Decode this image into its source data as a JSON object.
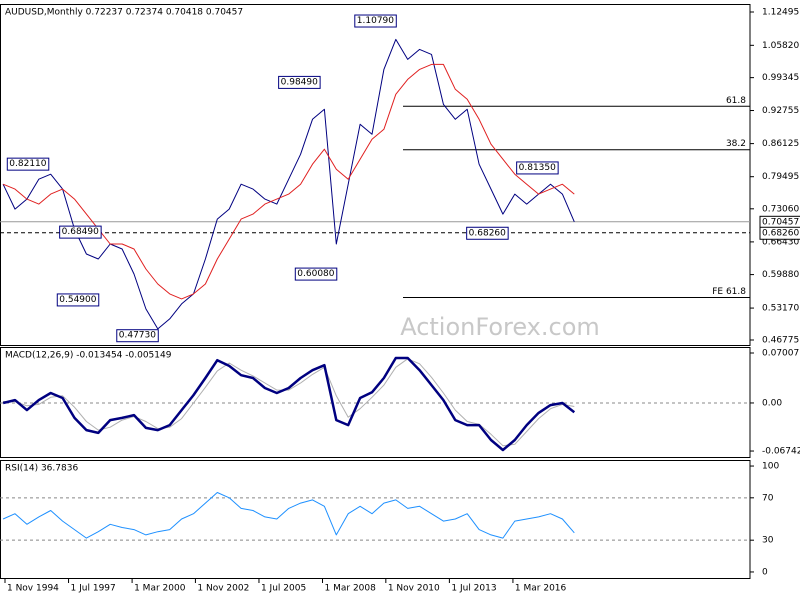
{
  "chart_data": [
    {
      "type": "line",
      "title": "AUDUSD,Monthly  0.72237 0.72374 0.70418 0.70457",
      "x": [
        1994.75,
        1995.25,
        1995.75,
        1996.25,
        1996.75,
        1997.25,
        1997.75,
        1998.25,
        1998.75,
        1999.25,
        1999.75,
        2000.25,
        2000.75,
        2001.25,
        2001.75,
        2002.25,
        2002.75,
        2003.25,
        2003.75,
        2004.25,
        2004.75,
        2005.25,
        2005.75,
        2006.25,
        2006.75,
        2007.25,
        2007.75,
        2008.25,
        2008.75,
        2009.25,
        2009.75,
        2010.25,
        2010.75,
        2011.25,
        2011.75,
        2012.25,
        2012.75,
        2013.25,
        2013.75,
        2014.25,
        2014.75,
        2015.25,
        2015.75,
        2016.25,
        2016.75,
        2017.25,
        2017.75,
        2018.25,
        2018.75
      ],
      "series": [
        {
          "color": "#000080",
          "width": 1,
          "values": [
            0.78,
            0.73,
            0.75,
            0.79,
            0.8,
            0.77,
            0.69,
            0.64,
            0.63,
            0.66,
            0.65,
            0.6,
            0.53,
            0.49,
            0.51,
            0.54,
            0.56,
            0.63,
            0.71,
            0.73,
            0.78,
            0.77,
            0.75,
            0.74,
            0.79,
            0.84,
            0.91,
            0.93,
            0.66,
            0.78,
            0.9,
            0.88,
            1.01,
            1.07,
            1.03,
            1.05,
            1.04,
            0.94,
            0.91,
            0.93,
            0.82,
            0.77,
            0.72,
            0.76,
            0.74,
            0.76,
            0.78,
            0.76,
            0.7046
          ]
        },
        {
          "color": "#e02020",
          "width": 1,
          "values": [
            0.78,
            0.77,
            0.75,
            0.74,
            0.76,
            0.77,
            0.75,
            0.72,
            0.69,
            0.66,
            0.66,
            0.65,
            0.61,
            0.58,
            0.56,
            0.55,
            0.56,
            0.58,
            0.63,
            0.67,
            0.71,
            0.72,
            0.74,
            0.75,
            0.76,
            0.78,
            0.82,
            0.85,
            0.81,
            0.79,
            0.83,
            0.87,
            0.89,
            0.96,
            0.99,
            1.01,
            1.02,
            1.02,
            0.97,
            0.95,
            0.91,
            0.86,
            0.83,
            0.8,
            0.78,
            0.76,
            0.77,
            0.78,
            0.76
          ]
        }
      ],
      "xlim": [
        1994.62,
        2026.13
      ],
      "ylim": [
        0.4577,
        1.141
      ],
      "grid": false,
      "yticks": [
        1.12495,
        {
          "value": 1.0582,
          "label": "1.05820"
        },
        0.99345,
        0.92755,
        0.86125,
        0.79495,
        {
          "value": 0.7306,
          "label": "0.73060"
        },
        {
          "value": 0.6643,
          "label": "0.66430"
        },
        {
          "value": 0.5988,
          "label": "0.59880"
        },
        {
          "value": 0.5317,
          "label": "0.53170"
        },
        0.46775
      ],
      "markers": [
        0.70457,
        {
          "value": 0.6826,
          "label": "0.68260"
        }
      ],
      "levels": [
        {
          "label": "61.8",
          "value": 0.936
        },
        {
          "label": "38.2",
          "value": 0.849
        },
        {
          "label": "FE 61.8",
          "value": 0.553
        }
      ],
      "annotations": [
        {
          "label": "1.10790",
          "value": 1.1079,
          "x": 2011.3
        },
        {
          "label": "0.98490",
          "value": 0.9849,
          "x": 2008.1
        },
        {
          "label": "0.82110",
          "value": 0.8211,
          "x": 1996.7
        },
        {
          "label": "0.68490",
          "value": 0.6849,
          "x": 1998.9
        },
        {
          "label": "0.54900",
          "value": 0.549,
          "x": 1998.8
        },
        {
          "label": "0.47730",
          "value": 0.4773,
          "x": 2001.3
        },
        {
          "label": "0.60080",
          "value": 0.6008,
          "x": 2008.8
        },
        {
          "label": "0.68260",
          "value": 0.6826,
          "x": 2016.0
        },
        {
          "label": "0.81350",
          "value": 0.8135,
          "x": 2018.1
        }
      ],
      "watermark": "ActionForex.com"
    },
    {
      "type": "line",
      "title": "MACD(12,26,9) -0.013454 -0.005149",
      "x": [
        1994.75,
        1995.25,
        1995.75,
        1996.25,
        1996.75,
        1997.25,
        1997.75,
        1998.25,
        1998.75,
        1999.25,
        1999.75,
        2000.25,
        2000.75,
        2001.25,
        2001.75,
        2002.25,
        2002.75,
        2003.25,
        2003.75,
        2004.25,
        2004.75,
        2005.25,
        2005.75,
        2006.25,
        2006.75,
        2007.25,
        2007.75,
        2008.25,
        2008.75,
        2009.25,
        2009.75,
        2010.25,
        2010.75,
        2011.25,
        2011.75,
        2012.25,
        2012.75,
        2013.25,
        2013.75,
        2014.25,
        2014.75,
        2015.25,
        2015.75,
        2016.25,
        2016.75,
        2017.25,
        2017.75,
        2018.25,
        2018.75
      ],
      "series": [
        {
          "color": "#b0b0b0",
          "width": 1,
          "values": [
            0.002,
            0.002,
            -0.004,
            -0.002,
            0.008,
            0.01,
            -0.006,
            -0.026,
            -0.038,
            -0.034,
            -0.024,
            -0.019,
            -0.026,
            -0.036,
            -0.034,
            -0.022,
            0.0,
            0.022,
            0.045,
            0.056,
            0.046,
            0.038,
            0.028,
            0.018,
            0.018,
            0.028,
            0.04,
            0.05,
            0.01,
            -0.02,
            -0.008,
            0.008,
            0.025,
            0.05,
            0.062,
            0.055,
            0.036,
            0.014,
            -0.01,
            -0.026,
            -0.03,
            -0.044,
            -0.06,
            -0.058,
            -0.04,
            -0.022,
            -0.008,
            -0.002,
            -0.005
          ]
        },
        {
          "color": "#000080",
          "width": 2.5,
          "values": [
            0.0,
            0.004,
            -0.01,
            0.004,
            0.014,
            0.007,
            -0.021,
            -0.038,
            -0.042,
            -0.024,
            -0.021,
            -0.017,
            -0.035,
            -0.038,
            -0.031,
            -0.01,
            0.011,
            0.035,
            0.06,
            0.052,
            0.039,
            0.035,
            0.021,
            0.014,
            0.021,
            0.035,
            0.046,
            0.053,
            -0.024,
            -0.031,
            0.007,
            0.015,
            0.035,
            0.063,
            0.063,
            0.046,
            0.025,
            0.004,
            -0.024,
            -0.031,
            -0.031,
            -0.052,
            -0.066,
            -0.052,
            -0.031,
            -0.014,
            -0.003,
            0.0,
            -0.013
          ]
        }
      ],
      "xlim": [
        1994.62,
        2026.13
      ],
      "ylim": [
        -0.0758,
        0.0785
      ],
      "grid": true,
      "yticks": [
        0.070071,
        {
          "value": 0,
          "label": "0.00"
        },
        -0.067423
      ]
    },
    {
      "type": "line",
      "title": "RSI(14) 36.7836",
      "x": [
        1994.75,
        1995.25,
        1995.75,
        1996.25,
        1996.75,
        1997.25,
        1997.75,
        1998.25,
        1998.75,
        1999.25,
        1999.75,
        2000.25,
        2000.75,
        2001.25,
        2001.75,
        2002.25,
        2002.75,
        2003.25,
        2003.75,
        2004.25,
        2004.75,
        2005.25,
        2005.75,
        2006.25,
        2006.75,
        2007.25,
        2007.75,
        2008.25,
        2008.75,
        2009.25,
        2009.75,
        2010.25,
        2010.75,
        2011.25,
        2011.75,
        2012.25,
        2012.75,
        2013.25,
        2013.75,
        2014.25,
        2014.75,
        2015.25,
        2015.75,
        2016.25,
        2016.75,
        2017.25,
        2017.75,
        2018.25,
        2018.75
      ],
      "series": [
        {
          "color": "#1e90ff",
          "width": 1,
          "values": [
            50,
            55,
            45,
            52,
            58,
            48,
            40,
            32,
            38,
            45,
            42,
            40,
            35,
            38,
            40,
            50,
            55,
            65,
            75,
            70,
            60,
            58,
            52,
            50,
            60,
            65,
            68,
            62,
            35,
            55,
            62,
            55,
            65,
            68,
            60,
            62,
            55,
            48,
            50,
            55,
            40,
            35,
            32,
            48,
            50,
            52,
            55,
            50,
            37
          ]
        }
      ],
      "xlim": [
        1994.62,
        2026.13
      ],
      "ylim": [
        -5.7,
        105.7
      ],
      "grid": true,
      "yticks": [
        100,
        70,
        30,
        0
      ],
      "xticks": [
        {
          "value": 1994.83,
          "label": "1 Nov 1994"
        },
        {
          "value": 1997.5,
          "label": "1 Jul 1997"
        },
        {
          "value": 2000.17,
          "label": "1 Mar 2000"
        },
        {
          "value": 2002.83,
          "label": "1 Nov 2002"
        },
        {
          "value": 2005.5,
          "label": "1 Jul 2005"
        },
        {
          "value": 2008.17,
          "label": "1 Mar 2008"
        },
        {
          "value": 2010.83,
          "label": "1 Nov 2010"
        },
        {
          "value": 2013.5,
          "label": "1 Jul 2013"
        },
        {
          "value": 2016.17,
          "label": "1 Mar 2016"
        }
      ]
    }
  ]
}
